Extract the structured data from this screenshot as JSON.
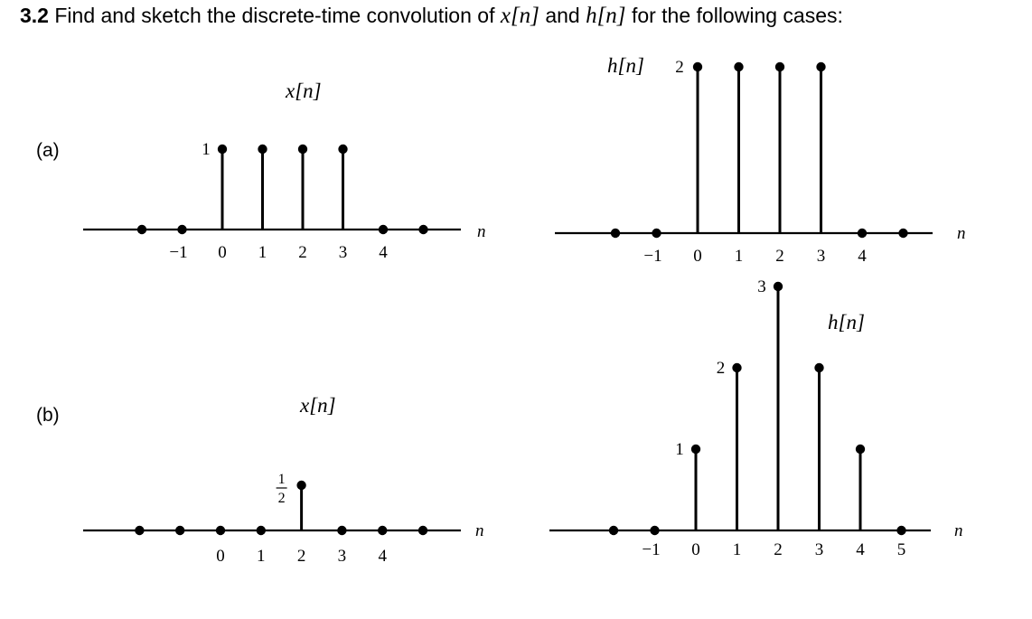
{
  "problem": {
    "number": "3.2",
    "text_before": "Find and sketch the discrete-time convolution of",
    "x_symbol": "x[n]",
    "and_word": "and",
    "h_symbol": "h[n]",
    "text_after": "for the following cases:"
  },
  "parts": [
    {
      "label": "(a)",
      "plots": [
        {
          "id": "a-x",
          "title": "x[n]",
          "axis_label": "n",
          "tick_labels": [
            "−1",
            "0",
            "1",
            "2",
            "3",
            "4"
          ],
          "points": [
            {
              "n": -2,
              "value": 0
            },
            {
              "n": -1,
              "value": 0
            },
            {
              "n": 0,
              "value": 1
            },
            {
              "n": 1,
              "value": 1
            },
            {
              "n": 2,
              "value": 1
            },
            {
              "n": 3,
              "value": 1
            },
            {
              "n": 4,
              "value": 0
            },
            {
              "n": 5,
              "value": 0
            }
          ],
          "value_labels": [
            {
              "n": 0,
              "text": "1"
            }
          ]
        },
        {
          "id": "a-h",
          "title": "h[n]",
          "axis_label": "n",
          "tick_labels": [
            "−1",
            "0",
            "1",
            "2",
            "3",
            "4"
          ],
          "points": [
            {
              "n": -2,
              "value": 0
            },
            {
              "n": -1,
              "value": 0
            },
            {
              "n": 0,
              "value": 2
            },
            {
              "n": 1,
              "value": 2
            },
            {
              "n": 2,
              "value": 2
            },
            {
              "n": 3,
              "value": 2
            },
            {
              "n": 4,
              "value": 0
            },
            {
              "n": 5,
              "value": 0
            }
          ],
          "value_labels": [
            {
              "n": 0,
              "text": "2"
            }
          ]
        }
      ]
    },
    {
      "label": "(b)",
      "plots": [
        {
          "id": "b-x",
          "title": "x[n]",
          "axis_label": "n",
          "tick_labels": [
            "0",
            "1",
            "2",
            "3",
            "4"
          ],
          "points": [
            {
              "n": -2,
              "value": 0
            },
            {
              "n": -1,
              "value": 0
            },
            {
              "n": 0,
              "value": 0
            },
            {
              "n": 1,
              "value": 0
            },
            {
              "n": 2,
              "value": 0.5
            },
            {
              "n": 3,
              "value": 0
            },
            {
              "n": 4,
              "value": 0
            },
            {
              "n": 5,
              "value": 0
            }
          ],
          "value_labels": [
            {
              "n": 2,
              "text": "1/2",
              "numerator": "1",
              "denominator": "2"
            }
          ]
        },
        {
          "id": "b-h",
          "title": "h[n]",
          "axis_label": "n",
          "tick_labels": [
            "−1",
            "0",
            "1",
            "2",
            "3",
            "4",
            "5"
          ],
          "points": [
            {
              "n": -2,
              "value": 0
            },
            {
              "n": -1,
              "value": 0
            },
            {
              "n": 0,
              "value": 1
            },
            {
              "n": 1,
              "value": 2
            },
            {
              "n": 2,
              "value": 3
            },
            {
              "n": 3,
              "value": 2
            },
            {
              "n": 4,
              "value": 1
            },
            {
              "n": 5,
              "value": 0
            }
          ],
          "value_labels": [
            {
              "n": 0,
              "text": "1"
            },
            {
              "n": 1,
              "text": "2"
            },
            {
              "n": 2,
              "text": "3"
            }
          ]
        }
      ]
    }
  ]
}
